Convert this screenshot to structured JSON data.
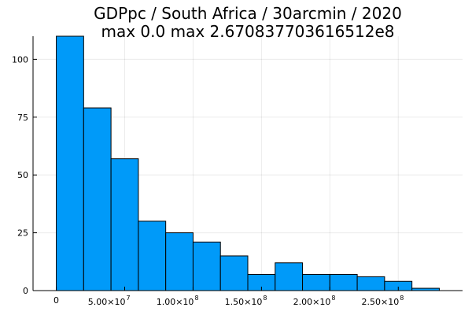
{
  "chart_data": {
    "type": "bar",
    "title": "GDPpc / South Africa / 30arcmin / 2020",
    "subtitle": "max 0.0  max 2.670837703616512e8",
    "xlabel": "",
    "ylabel": "",
    "bar_color": "#009af9",
    "bin_edges": [
      0,
      20000000,
      40000000,
      60000000,
      80000000,
      100000000,
      120000000,
      140000000,
      160000000,
      180000000,
      200000000,
      220000000,
      240000000,
      260000000,
      280000000
    ],
    "values": [
      110,
      79,
      57,
      30,
      25,
      21,
      15,
      7,
      12,
      7,
      7,
      6,
      4,
      1
    ],
    "xlim": [
      -17000000,
      297000000
    ],
    "ylim": [
      0,
      110
    ],
    "x_ticks": [
      {
        "value": 0,
        "label": "0"
      },
      {
        "value": 50000000,
        "mantissa": "5.00×10",
        "exponent": "7"
      },
      {
        "value": 100000000,
        "mantissa": "1.00×10",
        "exponent": "8"
      },
      {
        "value": 150000000,
        "mantissa": "1.50×10",
        "exponent": "8"
      },
      {
        "value": 200000000,
        "mantissa": "2.00×10",
        "exponent": "8"
      },
      {
        "value": 250000000,
        "mantissa": "2.50×10",
        "exponent": "8"
      }
    ],
    "y_ticks": [
      0,
      25,
      50,
      75,
      100
    ],
    "grid": true,
    "legend": "none"
  }
}
